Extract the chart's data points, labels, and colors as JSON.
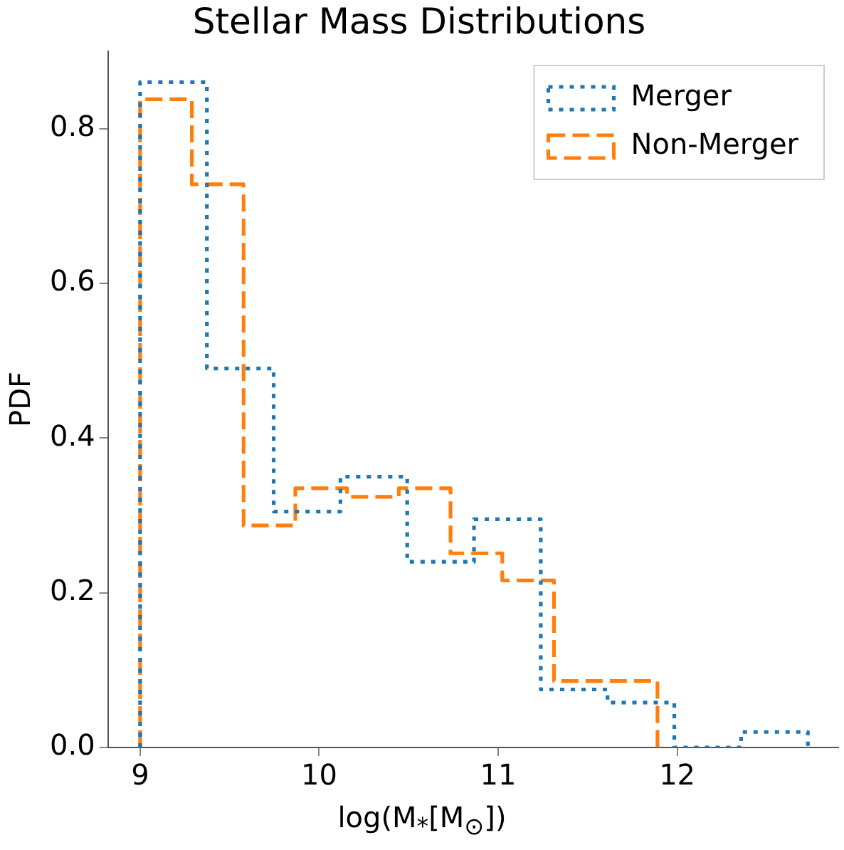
{
  "chart_data": {
    "type": "step",
    "title": "Stellar Mass Distributions",
    "xlabel": "log(M$_{*}$[M$_{⊙}$])",
    "ylabel": "PDF",
    "series": [
      {
        "name": "Merger",
        "color": "#1f77b4",
        "line_style": "dotted",
        "x": [
          9,
          9,
          9.373,
          9.746,
          10.119,
          10.492,
          10.865,
          11.238,
          11.611,
          11.984,
          12.357,
          12.73
        ],
        "values": [
          0,
          0.86,
          0.49,
          0.305,
          0.35,
          0.24,
          0.295,
          0.075,
          0.058,
          0,
          0.02,
          0
        ]
      },
      {
        "name": "Non-Merger",
        "color": "#ff7f0e",
        "line_style": "dashed",
        "x": [
          9,
          9,
          9.289,
          9.578,
          9.867,
          10.156,
          10.445,
          10.734,
          11.023,
          11.312,
          11.601,
          11.89
        ],
        "values": [
          0,
          0.838,
          0.728,
          0.287,
          0.335,
          0.324,
          0.335,
          0.251,
          0.216,
          0.086,
          0.086,
          0
        ]
      }
    ],
    "xlim": [
      8.82,
      12.9
    ],
    "xticks": [
      9,
      10,
      11,
      12
    ],
    "ylim": [
      0,
      0.9
    ],
    "yticks": [
      {
        "value": 0,
        "label": "0.0"
      },
      0.2,
      0.4,
      0.6,
      0.8
    ],
    "grid": false,
    "legend": "top right"
  }
}
